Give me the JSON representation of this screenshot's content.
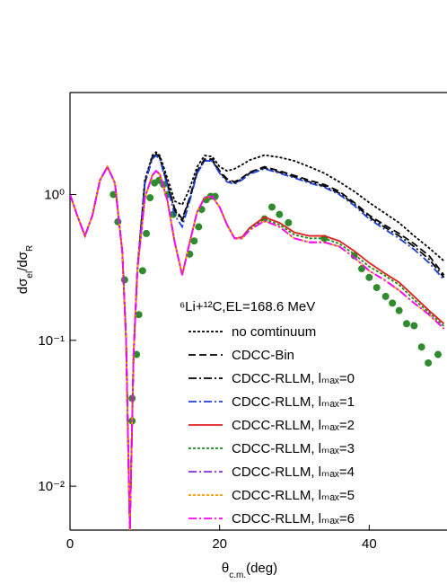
{
  "chart_data": {
    "type": "line",
    "annotation": "⁶Li+¹²C,EL=168.6 MeV",
    "xlabel": [
      "θ",
      "c.m.",
      "(deg)"
    ],
    "ylabel": [
      "dσ",
      "el",
      "/dσ",
      "R"
    ],
    "xlim": [
      0,
      50.4
    ],
    "xticks": [
      0,
      20,
      40
    ],
    "ylim": [
      0.005,
      5
    ],
    "log_y": true,
    "yticks": [
      {
        "value": 0.01,
        "label": "10⁻²"
      },
      {
        "value": 0.1,
        "label": "10⁻¹"
      },
      {
        "value": 1,
        "label": "10⁰"
      }
    ],
    "x": [
      0,
      1,
      2,
      3,
      4,
      5,
      6,
      7,
      7.5,
      8,
      8.5,
      9,
      10,
      11,
      11.5,
      12,
      13,
      14,
      15,
      16,
      17,
      18,
      19,
      20,
      21,
      22,
      23,
      24,
      26,
      28,
      30,
      32,
      34,
      36,
      38,
      40,
      42,
      44,
      46,
      48,
      50
    ],
    "series": [
      {
        "name": "no comtinuum",
        "color": "#000000",
        "linestyle": "dotted",
        "values": [
          1.0,
          0.71,
          0.52,
          0.72,
          1.25,
          1.55,
          1.2,
          0.4,
          0.1,
          0.005,
          0.08,
          0.3,
          1.25,
          1.85,
          1.95,
          1.85,
          1.3,
          0.9,
          0.85,
          1.1,
          1.55,
          1.85,
          1.82,
          1.55,
          1.45,
          1.5,
          1.6,
          1.72,
          1.86,
          1.8,
          1.7,
          1.55,
          1.4,
          1.22,
          1.05,
          0.88,
          0.75,
          0.64,
          0.52,
          0.43,
          0.35
        ]
      },
      {
        "name": "CDCC-Bin",
        "color": "#000000",
        "linestyle": "dashed",
        "values": [
          1.0,
          0.71,
          0.52,
          0.72,
          1.25,
          1.55,
          1.2,
          0.4,
          0.1,
          0.005,
          0.08,
          0.3,
          1.2,
          1.8,
          1.9,
          1.8,
          1.2,
          0.8,
          0.68,
          0.95,
          1.45,
          1.75,
          1.75,
          1.45,
          1.28,
          1.22,
          1.3,
          1.42,
          1.55,
          1.45,
          1.35,
          1.25,
          1.17,
          1.05,
          0.88,
          0.72,
          0.62,
          0.54,
          0.46,
          0.38,
          0.28
        ]
      },
      {
        "name": "CDCC-RLLM, lₘₐₓ=0",
        "color": "#000000",
        "linestyle": "dashdot",
        "values": [
          1.0,
          0.71,
          0.52,
          0.72,
          1.25,
          1.55,
          1.2,
          0.4,
          0.1,
          0.005,
          0.08,
          0.3,
          1.2,
          1.78,
          1.88,
          1.78,
          1.18,
          0.78,
          0.66,
          0.93,
          1.42,
          1.72,
          1.72,
          1.42,
          1.25,
          1.2,
          1.28,
          1.4,
          1.52,
          1.42,
          1.32,
          1.22,
          1.14,
          1.02,
          0.86,
          0.7,
          0.6,
          0.52,
          0.44,
          0.36,
          0.27
        ]
      },
      {
        "name": "CDCC-RLLM, lₘₐₓ=1",
        "color": "#1f3fd6",
        "linestyle": "dashdot",
        "values": [
          1.0,
          0.71,
          0.52,
          0.72,
          1.25,
          1.55,
          1.2,
          0.4,
          0.1,
          0.005,
          0.08,
          0.3,
          1.18,
          1.75,
          1.85,
          1.75,
          1.15,
          0.72,
          0.6,
          0.9,
          1.4,
          1.7,
          1.7,
          1.4,
          1.22,
          1.18,
          1.26,
          1.38,
          1.5,
          1.4,
          1.3,
          1.2,
          1.12,
          1.0,
          0.84,
          0.68,
          0.58,
          0.5,
          0.42,
          0.34,
          0.26
        ]
      },
      {
        "name": "CDCC-RLLM, lₘₐₓ=2",
        "color": "#e02020",
        "linestyle": "solid",
        "values": [
          1.0,
          0.71,
          0.52,
          0.72,
          1.25,
          1.55,
          1.2,
          0.4,
          0.1,
          0.005,
          0.08,
          0.3,
          0.95,
          1.35,
          1.45,
          1.38,
          0.92,
          0.47,
          0.28,
          0.47,
          0.76,
          0.95,
          0.97,
          0.82,
          0.62,
          0.5,
          0.51,
          0.59,
          0.7,
          0.64,
          0.55,
          0.52,
          0.52,
          0.48,
          0.41,
          0.34,
          0.29,
          0.25,
          0.2,
          0.16,
          0.13
        ]
      },
      {
        "name": "CDCC-RLLM, lₘₐₓ=3",
        "color": "#1a8a1a",
        "linestyle": "dotted",
        "values": [
          1.0,
          0.71,
          0.52,
          0.72,
          1.25,
          1.55,
          1.2,
          0.4,
          0.1,
          0.005,
          0.08,
          0.3,
          0.95,
          1.35,
          1.45,
          1.38,
          0.92,
          0.47,
          0.28,
          0.47,
          0.76,
          0.95,
          0.97,
          0.82,
          0.62,
          0.5,
          0.5,
          0.58,
          0.68,
          0.62,
          0.53,
          0.5,
          0.5,
          0.46,
          0.39,
          0.32,
          0.28,
          0.24,
          0.19,
          0.155,
          0.125
        ]
      },
      {
        "name": "CDCC-RLLM, lₘₐₓ=4",
        "color": "#8a2be2",
        "linestyle": "dashdot",
        "values": [
          1.0,
          0.71,
          0.52,
          0.72,
          1.25,
          1.55,
          1.2,
          0.4,
          0.1,
          0.005,
          0.08,
          0.3,
          0.95,
          1.35,
          1.45,
          1.38,
          0.92,
          0.47,
          0.28,
          0.47,
          0.76,
          0.95,
          0.97,
          0.82,
          0.62,
          0.5,
          0.5,
          0.57,
          0.66,
          0.6,
          0.5,
          0.47,
          0.47,
          0.44,
          0.37,
          0.3,
          0.26,
          0.22,
          0.18,
          0.15,
          0.12
        ]
      },
      {
        "name": "CDCC-RLLM, lₘₐₓ=5",
        "color": "#ff9900",
        "linestyle": "dotted",
        "values": [
          1.0,
          0.71,
          0.52,
          0.72,
          1.25,
          1.55,
          1.2,
          0.4,
          0.1,
          0.005,
          0.08,
          0.3,
          0.95,
          1.35,
          1.45,
          1.38,
          0.92,
          0.47,
          0.28,
          0.47,
          0.76,
          0.95,
          0.97,
          0.82,
          0.62,
          0.5,
          0.5,
          0.57,
          0.66,
          0.6,
          0.5,
          0.47,
          0.47,
          0.44,
          0.37,
          0.3,
          0.26,
          0.22,
          0.18,
          0.15,
          0.12
        ]
      },
      {
        "name": "CDCC-RLLM, lₘₐₓ=6",
        "color": "#ff00ff",
        "linestyle": "dashdot",
        "values": [
          1.0,
          0.71,
          0.52,
          0.72,
          1.25,
          1.55,
          1.2,
          0.4,
          0.1,
          0.005,
          0.08,
          0.3,
          0.95,
          1.35,
          1.45,
          1.38,
          0.92,
          0.47,
          0.28,
          0.47,
          0.76,
          0.95,
          0.97,
          0.82,
          0.62,
          0.5,
          0.5,
          0.57,
          0.66,
          0.6,
          0.5,
          0.47,
          0.47,
          0.44,
          0.37,
          0.3,
          0.26,
          0.22,
          0.18,
          0.15,
          0.12
        ]
      }
    ],
    "points": {
      "color": "#2e8b2e",
      "x": [
        5.8,
        6.4,
        7.3,
        8.3,
        8.3,
        8.9,
        9.2,
        9.7,
        10.2,
        10.7,
        11.3,
        11.9,
        12.5,
        13.1,
        13.8,
        16,
        16.6,
        17.2,
        17.6,
        18.2,
        18.8,
        19.4,
        26,
        27,
        28,
        29.2,
        34,
        38,
        39,
        40,
        41,
        42.2,
        43.1,
        44,
        45,
        46,
        47,
        47.9,
        49.2
      ],
      "values": [
        1.0,
        0.65,
        0.26,
        0.04,
        0.028,
        0.08,
        0.15,
        0.3,
        0.54,
        0.95,
        1.2,
        1.25,
        1.17,
        1.0,
        0.73,
        0.39,
        0.48,
        0.6,
        0.79,
        0.92,
        0.97,
        0.97,
        0.68,
        0.82,
        0.73,
        0.64,
        0.5,
        0.38,
        0.31,
        0.27,
        0.23,
        0.2,
        0.18,
        0.16,
        0.13,
        0.126,
        0.09,
        0.07,
        0.08
      ]
    }
  }
}
